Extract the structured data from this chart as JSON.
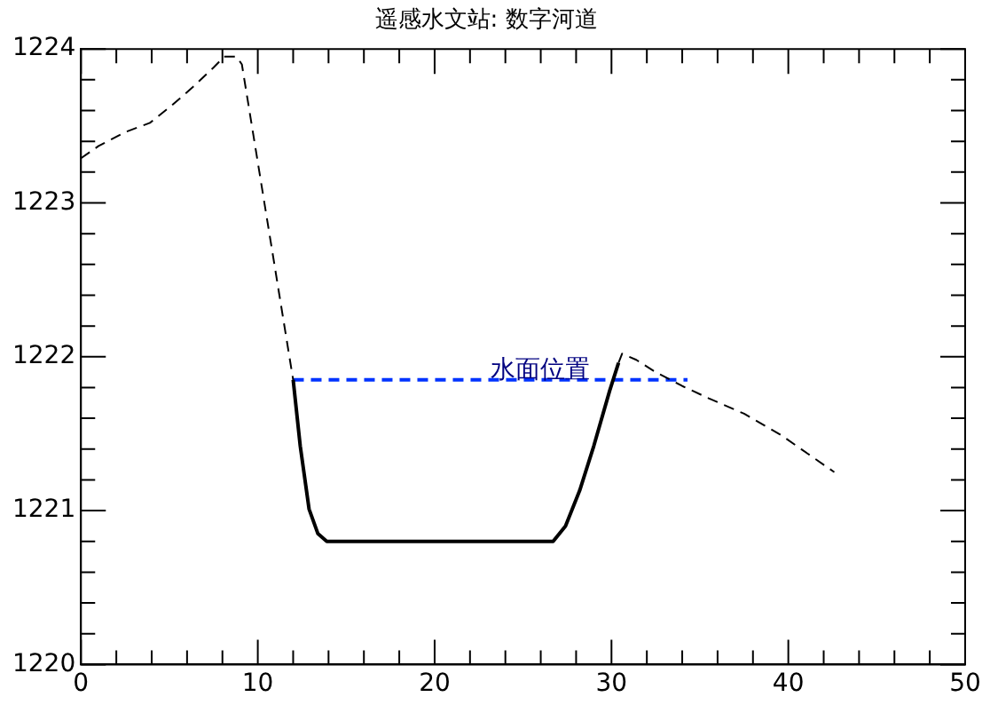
{
  "chart_data": {
    "type": "line",
    "title": "遥感水文站: 数字河道",
    "xlim": [
      0,
      50
    ],
    "ylim": [
      1220,
      1224
    ],
    "xticks": [
      0,
      {
        "value": 2,
        "label": null
      },
      {
        "value": 4,
        "label": null
      },
      {
        "value": 6,
        "label": null
      },
      {
        "value": 8,
        "label": null
      },
      10,
      {
        "value": 12,
        "label": null
      },
      {
        "value": 14,
        "label": null
      },
      {
        "value": 16,
        "label": null
      },
      {
        "value": 18,
        "label": null
      },
      20,
      {
        "value": 22,
        "label": null
      },
      {
        "value": 24,
        "label": null
      },
      {
        "value": 26,
        "label": null
      },
      {
        "value": 28,
        "label": null
      },
      30,
      {
        "value": 32,
        "label": null
      },
      {
        "value": 34,
        "label": null
      },
      {
        "value": 36,
        "label": null
      },
      {
        "value": 38,
        "label": null
      },
      40,
      {
        "value": 42,
        "label": null
      },
      {
        "value": 44,
        "label": null
      },
      {
        "value": 46,
        "label": null
      },
      {
        "value": 48,
        "label": null
      },
      50
    ],
    "yticks": [
      1220,
      {
        "value": 1220.2,
        "label": null
      },
      {
        "value": 1220.4,
        "label": null
      },
      {
        "value": 1220.6,
        "label": null
      },
      {
        "value": 1220.8,
        "label": null
      },
      1221,
      {
        "value": 1221.2,
        "label": null
      },
      {
        "value": 1221.4,
        "label": null
      },
      {
        "value": 1221.6,
        "label": null
      },
      {
        "value": 1221.8,
        "label": null
      },
      1222,
      {
        "value": 1222.2,
        "label": null
      },
      {
        "value": 1222.4,
        "label": null
      },
      {
        "value": 1222.6,
        "label": null
      },
      {
        "value": 1222.8,
        "label": null
      },
      1223,
      {
        "value": 1223.2,
        "label": null
      },
      {
        "value": 1223.4,
        "label": null
      },
      {
        "value": 1223.6,
        "label": null
      },
      {
        "value": 1223.8,
        "label": null
      },
      1224
    ],
    "grid": false,
    "legend": false,
    "marker": "none",
    "series": [
      {
        "color": "#000000",
        "line_style": "dashed",
        "x": [
          0,
          1,
          2.5,
          3.9,
          5.1,
          6.3,
          7.5,
          8.1,
          8.8,
          9.1,
          12
        ],
        "values": [
          1223.29,
          1223.37,
          1223.46,
          1223.52,
          1223.63,
          1223.75,
          1223.88,
          1223.95,
          1223.95,
          1223.9,
          1221.85
        ]
      },
      {
        "color": "#000000",
        "line_style": "solid",
        "x": [
          12,
          12.4,
          12.9,
          13.4,
          13.9,
          26.7,
          27.4,
          28.2,
          29,
          29.9,
          30.4
        ],
        "values": [
          1221.85,
          1221.42,
          1221.01,
          1220.85,
          1220.8,
          1220.8,
          1220.9,
          1221.13,
          1221.42,
          1221.78,
          1221.96
        ]
      },
      {
        "color": "#000000",
        "line_style": "dashed",
        "x": [
          30.4,
          30.6,
          31.4,
          32.5,
          34,
          35.5,
          37.5,
          39.6,
          41.1,
          42.6
        ],
        "values": [
          1221.96,
          1222.02,
          1221.98,
          1221.9,
          1221.81,
          1221.73,
          1221.63,
          1221.49,
          1221.37,
          1221.25
        ]
      },
      {
        "name": "水面位置",
        "color": "#0033ff",
        "line_style": "dashed",
        "x": [
          12,
          34.3
        ],
        "values": [
          1221.85,
          1221.85
        ]
      }
    ]
  }
}
